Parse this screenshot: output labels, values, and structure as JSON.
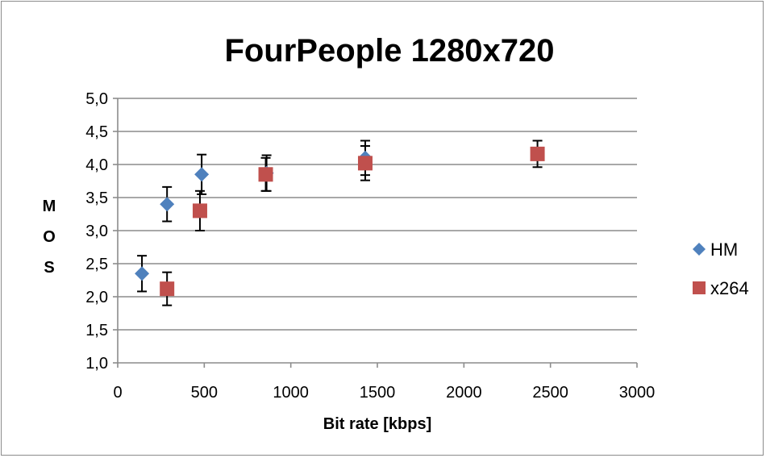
{
  "chart_data": {
    "type": "scatter",
    "title": "FourPeople 1280x720",
    "xlabel": "Bit rate [kbps]",
    "ylabel": "MOS",
    "xlim": [
      0,
      3000
    ],
    "ylim": [
      1.0,
      5.0
    ],
    "x_ticks": [
      0,
      500,
      1000,
      1500,
      2000,
      2500,
      3000
    ],
    "x_tick_labels": [
      "0",
      "500",
      "1000",
      "1500",
      "2000",
      "2500",
      "3000"
    ],
    "y_ticks": [
      1.0,
      1.5,
      2.0,
      2.5,
      3.0,
      3.5,
      4.0,
      4.5,
      5.0
    ],
    "y_tick_labels": [
      "1,0",
      "1,5",
      "2,0",
      "2,5",
      "3,0",
      "3,5",
      "4,0",
      "4,5",
      "5,0"
    ],
    "grid": "horizontal",
    "legend_position": "right",
    "series": [
      {
        "name": "HM",
        "marker": "diamond",
        "color": "#4f81bd",
        "points": [
          {
            "x": 140,
            "y": 2.35,
            "err": 0.27
          },
          {
            "x": 285,
            "y": 3.4,
            "err": 0.26
          },
          {
            "x": 485,
            "y": 3.85,
            "err": 0.3
          },
          {
            "x": 860,
            "y": 3.87,
            "err": 0.27
          },
          {
            "x": 1430,
            "y": 4.1,
            "err": 0.26
          }
        ]
      },
      {
        "name": "x264",
        "marker": "square",
        "color": "#c0504d",
        "points": [
          {
            "x": 285,
            "y": 2.12,
            "err": 0.25
          },
          {
            "x": 475,
            "y": 3.3,
            "err": 0.3
          },
          {
            "x": 855,
            "y": 3.85,
            "err": 0.25
          },
          {
            "x": 1430,
            "y": 4.02,
            "err": 0.26
          },
          {
            "x": 2425,
            "y": 4.16,
            "err": 0.2
          }
        ]
      }
    ]
  }
}
